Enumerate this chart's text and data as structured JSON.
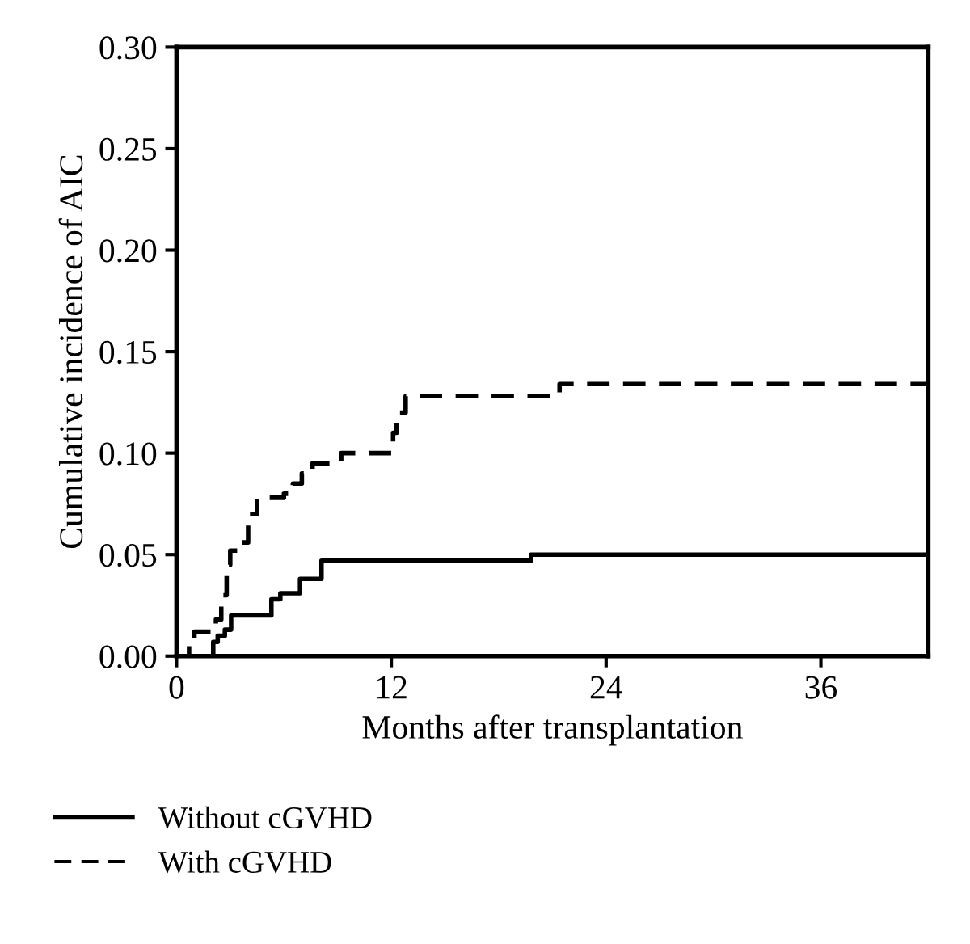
{
  "chart_data": {
    "type": "step",
    "xlabel": "Months after transplantation",
    "ylabel": "Cumulative incidence of AIC",
    "xlim": [
      0,
      42
    ],
    "xticks": [
      0,
      12,
      24,
      36
    ],
    "ylim": [
      0,
      0.3
    ],
    "yticks": [
      {
        "value": 0,
        "label": "0.00"
      },
      {
        "value": 0.05,
        "label": "0.05"
      },
      {
        "value": 0.1,
        "label": "0.10"
      },
      {
        "value": 0.15,
        "label": "0.15"
      },
      {
        "value": 0.2,
        "label": "0.20"
      },
      {
        "value": 0.25,
        "label": "0.25"
      },
      {
        "value": 0.3,
        "label": "0.30"
      }
    ],
    "grid": false,
    "legend": "bottom",
    "series": [
      {
        "name": "Without cGVHD",
        "color": "#000000",
        "line_style": "solid",
        "x": [
          0,
          2.05,
          2.3,
          2.7,
          3.05,
          5.3,
          5.8,
          6.9,
          8.1,
          19.8,
          42
        ],
        "values": [
          0,
          0.007,
          0.01,
          0.013,
          0.02,
          0.028,
          0.031,
          0.038,
          0.047,
          0.05,
          0.05
        ]
      },
      {
        "name": "With cGVHD",
        "color": "#000000",
        "line_style": "dashed",
        "x": [
          0,
          0.7,
          1.0,
          2.2,
          2.5,
          2.8,
          3.0,
          3.6,
          4.0,
          4.5,
          6.0,
          6.5,
          7.0,
          7.6,
          9.2,
          12.1,
          12.3,
          12.8,
          21.4,
          42
        ],
        "values": [
          0,
          0.008,
          0.012,
          0.018,
          0.03,
          0.045,
          0.052,
          0.056,
          0.07,
          0.078,
          0.08,
          0.085,
          0.09,
          0.095,
          0.1,
          0.11,
          0.12,
          0.128,
          0.134,
          0.134
        ]
      }
    ]
  }
}
